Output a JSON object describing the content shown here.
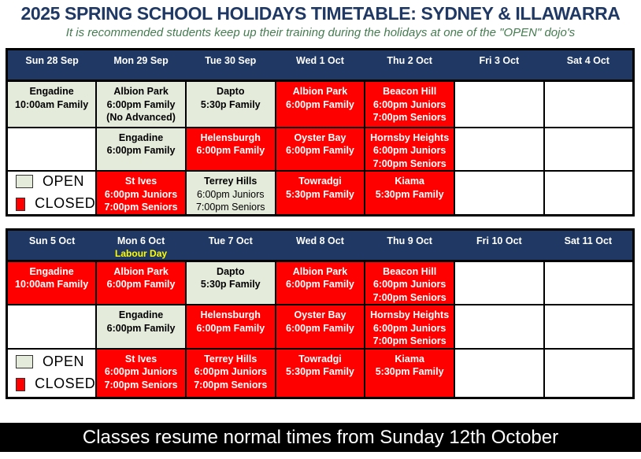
{
  "title": "2025 SPRING SCHOOL HOLIDAYS TIMETABLE: SYDNEY & ILLAWARRA",
  "subtitle": "It is recommended students keep up their training during the holidays at one of the \"OPEN\" dojo's",
  "banner": "Classes resume normal times from Sunday 12th October",
  "legend": {
    "open_label": "OPEN",
    "closed_label": "CLOSED"
  },
  "colors": {
    "header_bg": "#1F3864",
    "open_bg": "#E4EBDB",
    "closed_bg": "#FF0000",
    "labour_day_text": "#FFFF00",
    "banner_bg": "#000000",
    "title_text": "#1F3864",
    "subtitle_text": "#477B52"
  },
  "weeks": [
    {
      "days": [
        "Sun 28 Sep",
        "Mon 29 Sep",
        "Tue 30 Sep",
        "Wed 1 Oct",
        "Thu 2 Oct",
        "Fri 3 Oct",
        "Sat 4 Oct"
      ],
      "day_notes": [
        "",
        "",
        "",
        "",
        "",
        "",
        ""
      ],
      "rows": [
        [
          {
            "status": "open",
            "lines": [
              "Engadine",
              "10:00am Family"
            ]
          },
          {
            "status": "open",
            "lines": [
              "Albion Park",
              "6:00pm Family",
              "(No Advanced)"
            ]
          },
          {
            "status": "open",
            "lines": [
              "Dapto",
              "5:30p Family"
            ]
          },
          {
            "status": "closed",
            "lines": [
              "Albion Park",
              "6:00pm Family"
            ]
          },
          {
            "status": "closed",
            "lines": [
              "Beacon Hill",
              "6:00pm Juniors",
              "7:00pm Seniors"
            ]
          },
          {
            "status": "empty",
            "lines": []
          },
          {
            "status": "empty",
            "lines": []
          }
        ],
        [
          {
            "status": "empty",
            "lines": []
          },
          {
            "status": "open",
            "lines": [
              "Engadine",
              "6:00pm Family"
            ]
          },
          {
            "status": "closed",
            "lines": [
              "Helensburgh",
              "6:00pm Family"
            ]
          },
          {
            "status": "closed",
            "lines": [
              "Oyster Bay",
              "6:00pm Family"
            ]
          },
          {
            "status": "closed",
            "lines": [
              "Hornsby Heights",
              "6:00pm Juniors",
              "7:00pm Seniors"
            ]
          },
          {
            "status": "empty",
            "lines": []
          },
          {
            "status": "empty",
            "lines": []
          }
        ],
        [
          {
            "status": "legend",
            "lines": []
          },
          {
            "status": "closed",
            "lines": [
              "St Ives",
              "6:00pm Juniors",
              "7:00pm Seniors"
            ]
          },
          {
            "status": "open",
            "light_times": true,
            "lines": [
              "Terrey Hills",
              "6:00pm Juniors",
              "7:00pm Seniors"
            ]
          },
          {
            "status": "closed",
            "lines": [
              "Towradgi",
              "5:30pm Family"
            ]
          },
          {
            "status": "closed",
            "lines": [
              "Kiama",
              "5:30pm Family"
            ]
          },
          {
            "status": "empty",
            "lines": []
          },
          {
            "status": "empty",
            "lines": []
          }
        ]
      ]
    },
    {
      "days": [
        "Sun 5 Oct",
        "Mon 6 Oct",
        "Tue 7 Oct",
        "Wed 8 Oct",
        "Thu 9 Oct",
        "Fri 10 Oct",
        "Sat 11 Oct"
      ],
      "day_notes": [
        "",
        "Labour Day",
        "",
        "",
        "",
        "",
        ""
      ],
      "rows": [
        [
          {
            "status": "closed",
            "lines": [
              "Engadine",
              "10:00am Family"
            ]
          },
          {
            "status": "closed",
            "lines": [
              "Albion Park",
              "6:00pm Family"
            ]
          },
          {
            "status": "open",
            "lines": [
              "Dapto",
              "5:30p Family"
            ]
          },
          {
            "status": "closed",
            "lines": [
              "Albion Park",
              "6:00pm Family"
            ]
          },
          {
            "status": "closed",
            "lines": [
              "Beacon Hill",
              "6:00pm Juniors",
              "7:00pm Seniors"
            ]
          },
          {
            "status": "empty",
            "lines": []
          },
          {
            "status": "empty",
            "lines": []
          }
        ],
        [
          {
            "status": "empty",
            "lines": []
          },
          {
            "status": "open",
            "lines": [
              "Engadine",
              "6:00pm Family"
            ]
          },
          {
            "status": "closed",
            "lines": [
              "Helensburgh",
              "6:00pm Family"
            ]
          },
          {
            "status": "closed",
            "lines": [
              "Oyster Bay",
              "6:00pm Family"
            ]
          },
          {
            "status": "closed",
            "lines": [
              "Hornsby Heights",
              "6:00pm Juniors",
              "7:00pm Seniors"
            ]
          },
          {
            "status": "empty",
            "lines": []
          },
          {
            "status": "empty",
            "lines": []
          }
        ],
        [
          {
            "status": "legend",
            "lines": []
          },
          {
            "status": "closed",
            "lines": [
              "St Ives",
              "6:00pm Juniors",
              "7:00pm Seniors"
            ]
          },
          {
            "status": "closed",
            "lines": [
              "Terrey Hills",
              "6:00pm Juniors",
              "7:00pm Seniors"
            ]
          },
          {
            "status": "closed",
            "lines": [
              "Towradgi",
              "5:30pm Family"
            ]
          },
          {
            "status": "closed",
            "lines": [
              "Kiama",
              "5:30pm Family"
            ]
          },
          {
            "status": "empty",
            "lines": []
          },
          {
            "status": "empty",
            "lines": []
          }
        ]
      ]
    }
  ]
}
